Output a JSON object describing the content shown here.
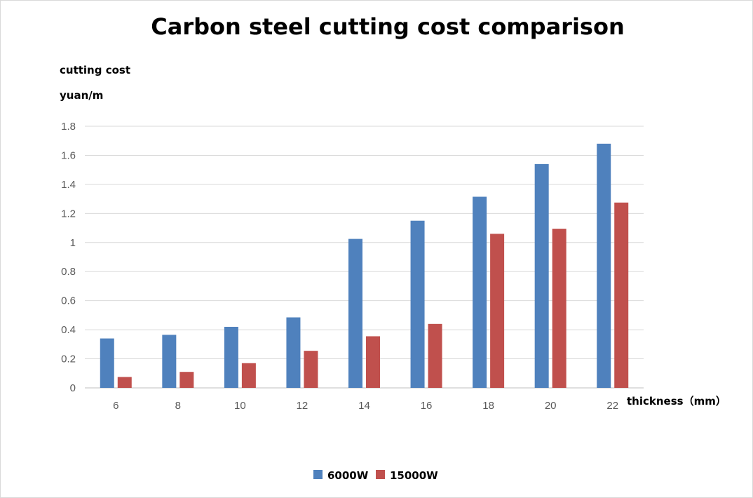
{
  "chart_data": {
    "type": "bar",
    "title": "Carbon steel cutting cost comparison",
    "ylabel_line1": "cutting cost",
    "ylabel_line2": "yuan/m",
    "xlabel": "thickness（mm）",
    "categories": [
      "6",
      "8",
      "10",
      "12",
      "14",
      "16",
      "18",
      "20",
      "22"
    ],
    "series": [
      {
        "name": "6000W",
        "color": "#4f81bd",
        "values": [
          0.34,
          0.365,
          0.42,
          0.485,
          1.025,
          1.15,
          1.315,
          1.54,
          1.68
        ]
      },
      {
        "name": "15000W",
        "color": "#c0504d",
        "values": [
          0.075,
          0.11,
          0.17,
          0.255,
          0.355,
          0.44,
          1.06,
          1.095,
          1.275
        ]
      }
    ],
    "ylim": [
      0,
      1.8
    ],
    "yticks": [
      "0",
      "0.2",
      "0.4",
      "0.6",
      "0.8",
      "1",
      "1.2",
      "1.4",
      "1.6",
      "1.8"
    ],
    "grid": true,
    "legend_position": "bottom"
  }
}
